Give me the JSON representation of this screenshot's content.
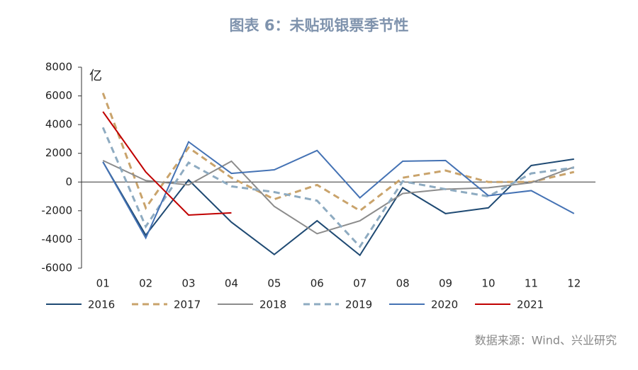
{
  "chart_data": {
    "type": "line",
    "title": "图表 6：未贴现银票季节性",
    "y_label": "亿",
    "source": "数据来源：Wind、兴业研究",
    "categories": [
      "01",
      "02",
      "03",
      "04",
      "05",
      "06",
      "07",
      "08",
      "09",
      "10",
      "11",
      "12"
    ],
    "ylim": [
      -6000,
      8000
    ],
    "yticks": [
      -6000,
      -4000,
      -2000,
      0,
      2000,
      4000,
      6000,
      8000
    ],
    "grid": false,
    "legend": "bottom",
    "series": [
      {
        "name": "2016",
        "color": "#1f4a73",
        "dash": "solid",
        "values": [
          1400,
          -3700,
          150,
          -2800,
          -5050,
          -2700,
          -5100,
          -400,
          -2200,
          -1800,
          1150,
          1600
        ]
      },
      {
        "name": "2017",
        "color": "#c9a36b",
        "dash": "dashed",
        "values": [
          6200,
          -1800,
          2400,
          300,
          -1200,
          -200,
          -2000,
          300,
          800,
          0,
          0,
          700
        ]
      },
      {
        "name": "2018",
        "color": "#8c8c8c",
        "dash": "solid",
        "values": [
          1500,
          100,
          -200,
          1450,
          -1700,
          -3600,
          -2700,
          -800,
          -500,
          -400,
          -50,
          1050
        ]
      },
      {
        "name": "2019",
        "color": "#8eabc1",
        "dash": "dashed",
        "values": [
          3800,
          -3100,
          1350,
          -300,
          -700,
          -1300,
          -4500,
          50,
          -500,
          -1000,
          600,
          1000
        ]
      },
      {
        "name": "2020",
        "color": "#4472b4",
        "dash": "solid",
        "values": [
          1400,
          -3900,
          2800,
          600,
          850,
          2200,
          -1100,
          1450,
          1500,
          -950,
          -600,
          -2200
        ]
      },
      {
        "name": "2021",
        "color": "#c00000",
        "dash": "solid",
        "values": [
          4900,
          700,
          -2300,
          -2150,
          null,
          null,
          null,
          null,
          null,
          null,
          null,
          null
        ]
      }
    ]
  }
}
